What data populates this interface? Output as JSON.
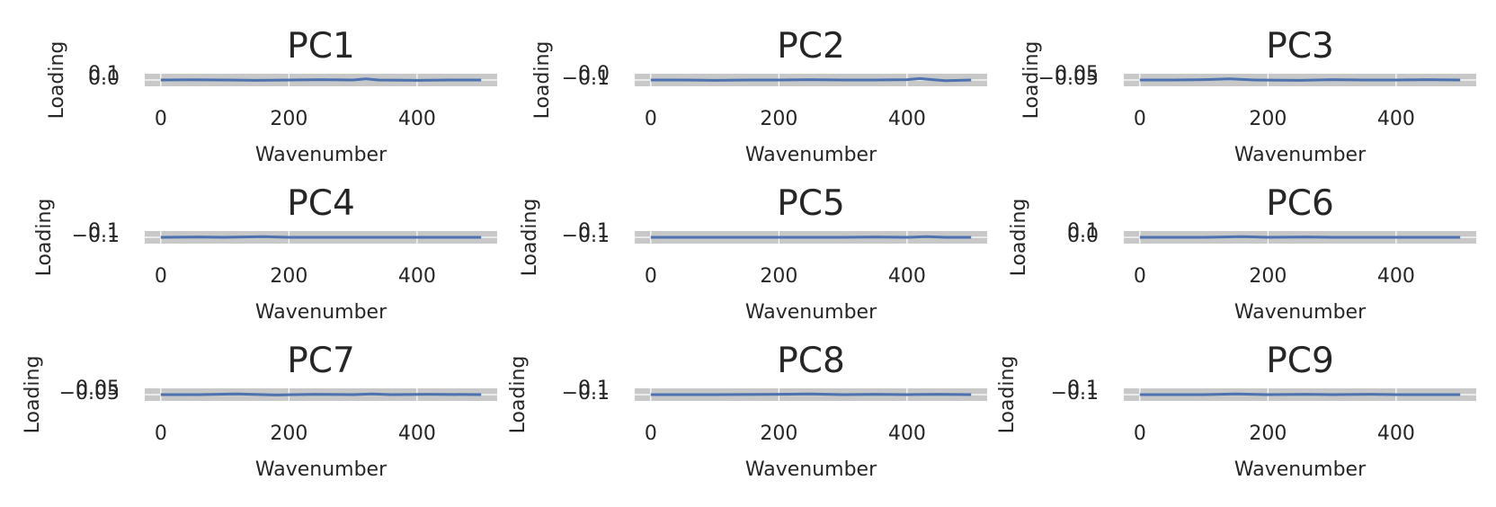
{
  "chart_data": [
    {
      "type": "line",
      "title": "PC1",
      "xlabel": "Wavenumber",
      "ylabel": "Loading",
      "xlim": [
        -25,
        525
      ],
      "x_ticks": [
        "0",
        "200",
        "400"
      ],
      "y_tick_labels": [
        "0.1",
        "0.0"
      ],
      "line_color": "#4c72b0",
      "background": "#eaeaf2",
      "grid": true,
      "series": [
        {
          "x": [
            0,
            50,
            100,
            150,
            200,
            250,
            300,
            320,
            340,
            400,
            450,
            500
          ],
          "y": [
            0.0,
            0.005,
            0.0,
            -0.01,
            0.0,
            0.01,
            0.0,
            0.03,
            0.0,
            -0.01,
            0.0,
            0.0
          ]
        }
      ]
    },
    {
      "type": "line",
      "title": "PC2",
      "xlabel": "Wavenumber",
      "ylabel": "Loading",
      "xlim": [
        -25,
        525
      ],
      "x_ticks": [
        "0",
        "200",
        "400"
      ],
      "y_tick_labels": [
        "0.0",
        "−0.1"
      ],
      "line_color": "#4c72b0",
      "background": "#eaeaf2",
      "grid": true,
      "series": [
        {
          "x": [
            0,
            50,
            100,
            150,
            200,
            250,
            300,
            350,
            400,
            420,
            440,
            460,
            500
          ],
          "y": [
            0.0,
            0.0,
            -0.01,
            0.0,
            0.0,
            0.01,
            0.0,
            0.0,
            0.01,
            0.04,
            0.01,
            -0.02,
            0.0
          ]
        }
      ]
    },
    {
      "type": "line",
      "title": "PC3",
      "xlabel": "Wavenumber",
      "ylabel": "Loading",
      "xlim": [
        -25,
        525
      ],
      "x_ticks": [
        "0",
        "200",
        "400"
      ],
      "y_tick_labels": [
        "0.05",
        "−0.05"
      ],
      "line_color": "#4c72b0",
      "background": "#eaeaf2",
      "grid": true,
      "series": [
        {
          "x": [
            0,
            50,
            100,
            140,
            180,
            250,
            300,
            350,
            400,
            450,
            500
          ],
          "y": [
            0.0,
            0.0,
            0.01,
            0.03,
            0.0,
            -0.01,
            0.01,
            0.0,
            0.0,
            0.01,
            0.0
          ]
        }
      ]
    },
    {
      "type": "line",
      "title": "PC4",
      "xlabel": "Wavenumber",
      "ylabel": "Loading",
      "xlim": [
        -25,
        525
      ],
      "x_ticks": [
        "0",
        "200",
        "400"
      ],
      "y_tick_labels": [
        "0.1",
        "−0.1"
      ],
      "line_color": "#4c72b0",
      "background": "#eaeaf2",
      "grid": true,
      "series": [
        {
          "x": [
            0,
            60,
            100,
            160,
            200,
            300,
            400,
            500
          ],
          "y": [
            0.0,
            0.01,
            0.0,
            0.02,
            0.0,
            0.0,
            0.0,
            0.0
          ]
        }
      ]
    },
    {
      "type": "line",
      "title": "PC5",
      "xlabel": "Wavenumber",
      "ylabel": "Loading",
      "xlim": [
        -25,
        525
      ],
      "x_ticks": [
        "0",
        "200",
        "400"
      ],
      "y_tick_labels": [
        "0.1",
        "−0.1"
      ],
      "line_color": "#4c72b0",
      "background": "#eaeaf2",
      "grid": true,
      "series": [
        {
          "x": [
            0,
            100,
            200,
            300,
            350,
            400,
            430,
            460,
            500
          ],
          "y": [
            0.0,
            0.0,
            0.0,
            0.0,
            0.01,
            0.0,
            0.02,
            0.0,
            0.0
          ]
        }
      ]
    },
    {
      "type": "line",
      "title": "PC6",
      "xlabel": "Wavenumber",
      "ylabel": "Loading",
      "xlim": [
        -25,
        525
      ],
      "x_ticks": [
        "0",
        "200",
        "400"
      ],
      "y_tick_labels": [
        "0.1",
        "0.0"
      ],
      "line_color": "#4c72b0",
      "background": "#eaeaf2",
      "grid": true,
      "series": [
        {
          "x": [
            0,
            100,
            160,
            200,
            260,
            300,
            400,
            500
          ],
          "y": [
            0.0,
            0.0,
            0.02,
            0.0,
            0.01,
            0.0,
            0.0,
            0.0
          ]
        }
      ]
    },
    {
      "type": "line",
      "title": "PC7",
      "xlabel": "Wavenumber",
      "ylabel": "Loading",
      "xlim": [
        -25,
        525
      ],
      "x_ticks": [
        "0",
        "200",
        "400"
      ],
      "y_tick_labels": [
        "0.05",
        "−0.05"
      ],
      "line_color": "#4c72b0",
      "background": "#eaeaf2",
      "grid": true,
      "series": [
        {
          "x": [
            0,
            60,
            120,
            180,
            240,
            300,
            330,
            360,
            420,
            500
          ],
          "y": [
            0.0,
            0.0,
            0.02,
            -0.01,
            0.01,
            0.0,
            0.02,
            0.0,
            0.01,
            0.0
          ]
        }
      ]
    },
    {
      "type": "line",
      "title": "PC8",
      "xlabel": "Wavenumber",
      "ylabel": "Loading",
      "xlim": [
        -25,
        525
      ],
      "x_ticks": [
        "0",
        "200",
        "400"
      ],
      "y_tick_labels": [
        "0.1",
        "−0.1"
      ],
      "line_color": "#4c72b0",
      "background": "#eaeaf2",
      "grid": true,
      "series": [
        {
          "x": [
            0,
            100,
            200,
            250,
            300,
            350,
            400,
            450,
            500
          ],
          "y": [
            0.0,
            0.0,
            0.01,
            0.02,
            0.0,
            0.01,
            0.0,
            0.01,
            0.0
          ]
        }
      ]
    },
    {
      "type": "line",
      "title": "PC9",
      "xlabel": "Wavenumber",
      "ylabel": "Loading",
      "xlim": [
        -25,
        525
      ],
      "x_ticks": [
        "0",
        "200",
        "400"
      ],
      "y_tick_labels": [
        "0.1",
        "−0.1"
      ],
      "line_color": "#4c72b0",
      "background": "#eaeaf2",
      "grid": true,
      "series": [
        {
          "x": [
            0,
            100,
            150,
            200,
            260,
            300,
            360,
            400,
            500
          ],
          "y": [
            0.0,
            0.0,
            0.02,
            0.0,
            0.01,
            0.0,
            0.01,
            0.0,
            0.0
          ]
        }
      ]
    }
  ]
}
